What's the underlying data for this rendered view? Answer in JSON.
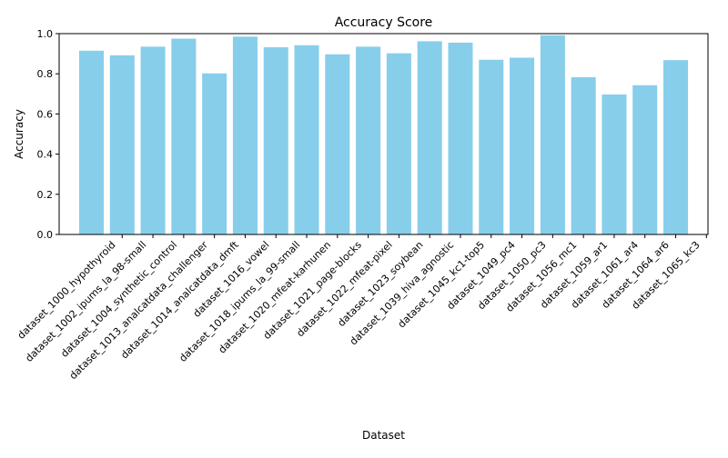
{
  "chart_data": {
    "type": "bar",
    "title": "Accuracy Score",
    "xlabel": "Dataset",
    "ylabel": "Accuracy",
    "ylim": [
      0,
      1.0
    ],
    "yticks": [
      "0.0",
      "0.2",
      "0.4",
      "0.6",
      "0.8",
      "1.0"
    ],
    "grid": false,
    "bar_color": "#87ceeb",
    "categories": [
      "dataset_1000_hypothyroid",
      "dataset_1002_ipums_la_98-small",
      "dataset_1004_synthetic_control",
      "dataset_1013_analcatdata_challenger",
      "dataset_1014_analcatdata_dmft",
      "dataset_1016_vowel",
      "dataset_1018_ipums_la_99-small",
      "dataset_1020_mfeat-karhunen",
      "dataset_1021_page-blocks",
      "dataset_1022_mfeat-pixel",
      "dataset_1023_soybean",
      "dataset_1039_hiva_agnostic",
      "dataset_1045_kc1-top5",
      "dataset_1049_pc4",
      "dataset_1050_pc3",
      "dataset_1056_mc1",
      "dataset_1059_ar1",
      "dataset_1061_ar4",
      "dataset_1064_ar6",
      "dataset_1065_kc3"
    ],
    "values": [
      0.915,
      0.892,
      0.935,
      0.975,
      0.802,
      0.985,
      0.932,
      0.942,
      0.897,
      0.935,
      0.902,
      0.962,
      0.955,
      0.87,
      0.88,
      0.992,
      0.783,
      0.697,
      0.743,
      0.868
    ]
  }
}
